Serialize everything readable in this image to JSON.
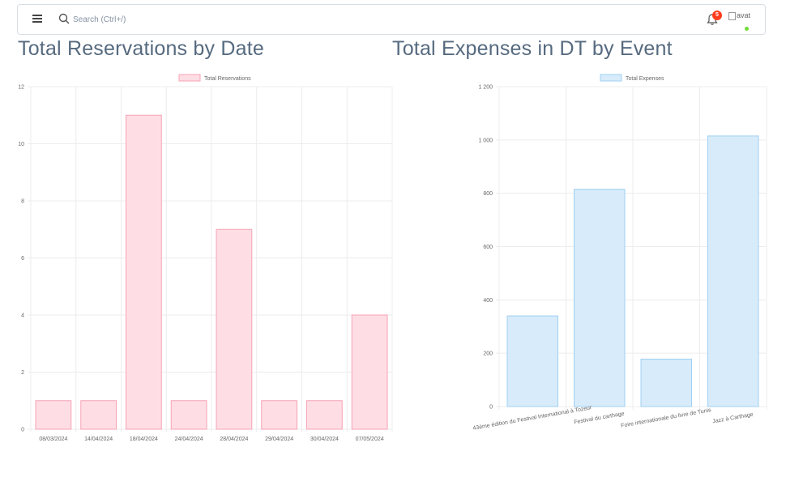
{
  "navbar": {
    "search_placeholder": "Search (Ctrl+/)",
    "notification_count": "5",
    "avatar_alt": "avat"
  },
  "sections": {
    "left_title": "Total Reservations by Date",
    "right_title": "Total Expenses in DT by Event"
  },
  "chart_data": [
    {
      "type": "bar",
      "title": "",
      "legend": {
        "position": "top",
        "label": "Total Reservations",
        "color": "#ffdde4",
        "border": "#f5a3b5"
      },
      "categories": [
        "08/03/2024",
        "14/04/2024",
        "18/04/2024",
        "24/04/2024",
        "28/04/2024",
        "29/04/2024",
        "30/04/2024",
        "07/05/2024"
      ],
      "series": [
        {
          "name": "Total Reservations",
          "values": [
            1,
            1,
            11,
            1,
            7,
            1,
            1,
            4
          ]
        }
      ],
      "ylim": [
        0,
        12
      ],
      "yticks": [
        "0",
        "2",
        "4",
        "6",
        "8",
        "10",
        "12"
      ],
      "ytick_values": [
        0,
        2,
        4,
        6,
        8,
        10,
        12
      ],
      "grid": true
    },
    {
      "type": "bar",
      "title": "",
      "legend": {
        "position": "top",
        "label": "Total Expenses",
        "color": "#d7ebfa",
        "border": "#9fd0f2"
      },
      "categories": [
        "43ème édition du Festival International à Tozeur",
        "Festival du carthage",
        "Foire internationale du livre de Tunis",
        "Jazz à Carthage"
      ],
      "series": [
        {
          "name": "Total Expenses",
          "values": [
            340,
            815,
            178,
            1015
          ]
        }
      ],
      "ylim": [
        0,
        1200
      ],
      "yticks": [
        "0",
        "200",
        "400",
        "600",
        "800",
        "1 000",
        "1 200"
      ],
      "ytick_values": [
        0,
        200,
        400,
        600,
        800,
        1000,
        1200
      ],
      "grid": true
    }
  ]
}
